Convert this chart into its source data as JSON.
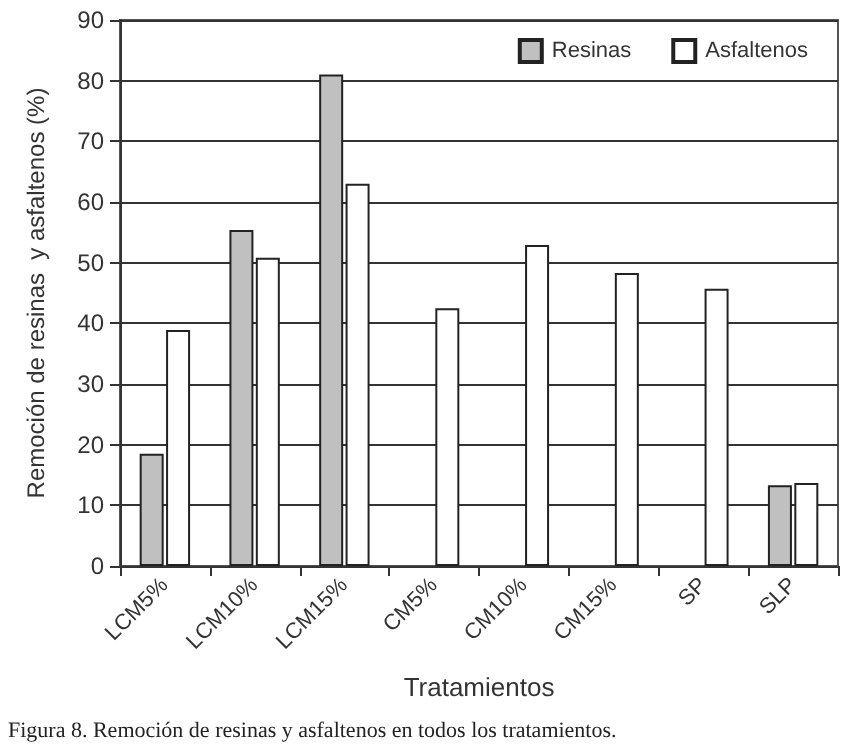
{
  "chart_data": {
    "type": "bar",
    "xlabel": "Tratamientos",
    "ylabel": "Remoción de resinas  y asfaltenos (%)",
    "categories": [
      "LCM5%",
      "LCM10%",
      "LCM15%",
      "CM5%",
      "CM10%",
      "CM15%",
      "SP",
      "SLP"
    ],
    "series": [
      {
        "name": "Resinas",
        "color": "#c0c0c0",
        "values": [
          18.5,
          55.4,
          81,
          0,
          0,
          0,
          0,
          13.3
        ]
      },
      {
        "name": "Asfaltenos",
        "color": "#ffffff",
        "values": [
          38.9,
          50.8,
          63,
          42.5,
          52.9,
          48.3,
          45.7,
          13.7
        ]
      }
    ],
    "ylim": [
      0,
      90
    ],
    "yticks": [
      0,
      10,
      20,
      30,
      40,
      50,
      60,
      70,
      80,
      90
    ],
    "grid": "y",
    "legend": "top right",
    "annotations": [
      "Figura 8. Remoción de resinas y asfaltenos en todos los tratamientos."
    ]
  }
}
